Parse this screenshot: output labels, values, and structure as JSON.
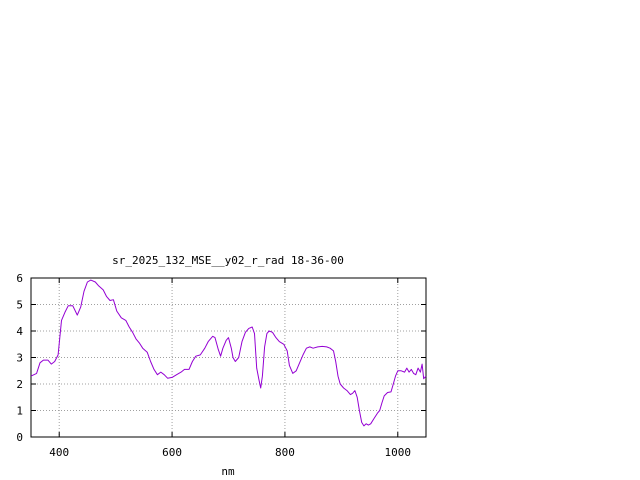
{
  "chart_data": {
    "type": "line",
    "title": "sr_2025_132_MSE__y02_r_rad 18-36-00",
    "xlabel": "nm",
    "ylabel": "",
    "xlim": [
      350,
      1050
    ],
    "ylim": [
      0,
      6
    ],
    "x_ticks": [
      400,
      600,
      800,
      1000
    ],
    "y_ticks": [
      0,
      1,
      2,
      3,
      4,
      5,
      6
    ],
    "grid": true,
    "legend": "none",
    "series": [
      {
        "color": "#9400d3",
        "points": [
          [
            350,
            2.3
          ],
          [
            360,
            2.4
          ],
          [
            366,
            2.8
          ],
          [
            372,
            2.9
          ],
          [
            380,
            2.9
          ],
          [
            386,
            2.75
          ],
          [
            392,
            2.85
          ],
          [
            398,
            3.1
          ],
          [
            404,
            4.4
          ],
          [
            410,
            4.7
          ],
          [
            416,
            4.95
          ],
          [
            424,
            4.95
          ],
          [
            432,
            4.6
          ],
          [
            438,
            4.9
          ],
          [
            444,
            5.5
          ],
          [
            450,
            5.85
          ],
          [
            456,
            5.92
          ],
          [
            464,
            5.85
          ],
          [
            470,
            5.7
          ],
          [
            478,
            5.55
          ],
          [
            484,
            5.3
          ],
          [
            490,
            5.15
          ],
          [
            496,
            5.18
          ],
          [
            502,
            4.75
          ],
          [
            510,
            4.5
          ],
          [
            518,
            4.4
          ],
          [
            524,
            4.15
          ],
          [
            530,
            3.95
          ],
          [
            536,
            3.7
          ],
          [
            542,
            3.55
          ],
          [
            548,
            3.35
          ],
          [
            556,
            3.2
          ],
          [
            562,
            2.85
          ],
          [
            568,
            2.55
          ],
          [
            574,
            2.35
          ],
          [
            580,
            2.45
          ],
          [
            586,
            2.35
          ],
          [
            592,
            2.22
          ],
          [
            600,
            2.25
          ],
          [
            608,
            2.35
          ],
          [
            616,
            2.45
          ],
          [
            622,
            2.55
          ],
          [
            630,
            2.55
          ],
          [
            636,
            2.85
          ],
          [
            642,
            3.05
          ],
          [
            650,
            3.1
          ],
          [
            658,
            3.35
          ],
          [
            664,
            3.6
          ],
          [
            672,
            3.8
          ],
          [
            676,
            3.75
          ],
          [
            682,
            3.3
          ],
          [
            686,
            3.05
          ],
          [
            690,
            3.35
          ],
          [
            696,
            3.65
          ],
          [
            700,
            3.75
          ],
          [
            705,
            3.35
          ],
          [
            708,
            3.0
          ],
          [
            712,
            2.85
          ],
          [
            718,
            3.0
          ],
          [
            724,
            3.6
          ],
          [
            730,
            3.95
          ],
          [
            736,
            4.1
          ],
          [
            742,
            4.15
          ],
          [
            746,
            3.9
          ],
          [
            750,
            2.6
          ],
          [
            754,
            2.15
          ],
          [
            757,
            1.85
          ],
          [
            760,
            2.3
          ],
          [
            764,
            3.4
          ],
          [
            768,
            3.9
          ],
          [
            772,
            4.0
          ],
          [
            778,
            3.95
          ],
          [
            784,
            3.75
          ],
          [
            790,
            3.6
          ],
          [
            798,
            3.5
          ],
          [
            804,
            3.25
          ],
          [
            808,
            2.7
          ],
          [
            814,
            2.4
          ],
          [
            820,
            2.5
          ],
          [
            826,
            2.8
          ],
          [
            832,
            3.1
          ],
          [
            838,
            3.35
          ],
          [
            844,
            3.4
          ],
          [
            850,
            3.35
          ],
          [
            858,
            3.4
          ],
          [
            866,
            3.42
          ],
          [
            874,
            3.4
          ],
          [
            880,
            3.35
          ],
          [
            886,
            3.25
          ],
          [
            890,
            2.85
          ],
          [
            894,
            2.3
          ],
          [
            898,
            2.0
          ],
          [
            904,
            1.85
          ],
          [
            910,
            1.75
          ],
          [
            916,
            1.6
          ],
          [
            920,
            1.65
          ],
          [
            924,
            1.75
          ],
          [
            928,
            1.5
          ],
          [
            932,
            1.0
          ],
          [
            936,
            0.55
          ],
          [
            940,
            0.42
          ],
          [
            944,
            0.5
          ],
          [
            948,
            0.45
          ],
          [
            952,
            0.5
          ],
          [
            958,
            0.7
          ],
          [
            964,
            0.9
          ],
          [
            968,
            1.0
          ],
          [
            972,
            1.3
          ],
          [
            976,
            1.55
          ],
          [
            982,
            1.68
          ],
          [
            988,
            1.7
          ],
          [
            992,
            2.0
          ],
          [
            996,
            2.3
          ],
          [
            1000,
            2.5
          ],
          [
            1006,
            2.5
          ],
          [
            1012,
            2.45
          ],
          [
            1016,
            2.6
          ],
          [
            1020,
            2.45
          ],
          [
            1024,
            2.55
          ],
          [
            1028,
            2.4
          ],
          [
            1032,
            2.35
          ],
          [
            1036,
            2.6
          ],
          [
            1040,
            2.45
          ],
          [
            1043,
            2.75
          ],
          [
            1046,
            2.2
          ],
          [
            1050,
            2.3
          ]
        ]
      }
    ]
  }
}
